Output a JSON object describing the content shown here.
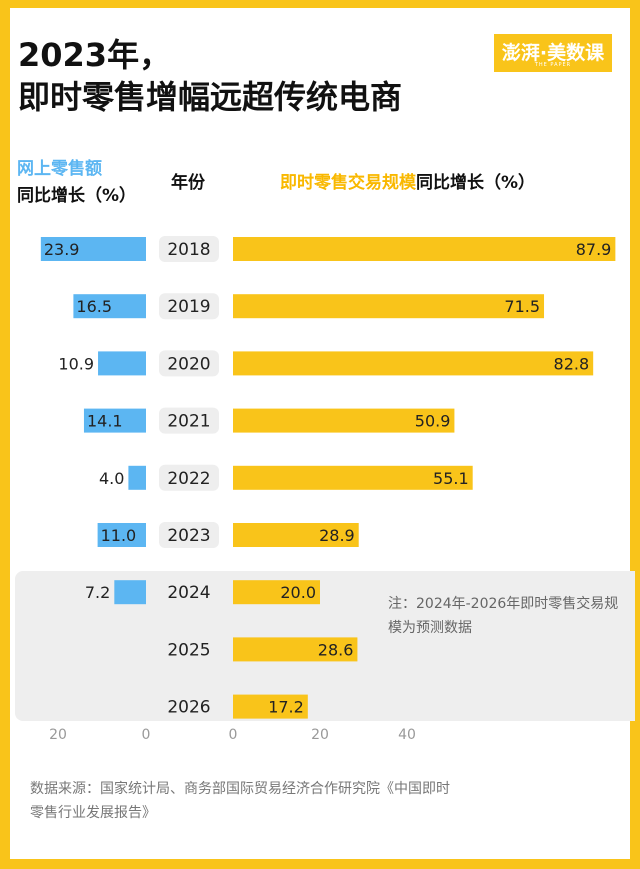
{
  "title_line1": "2023年，",
  "title_line2": "即时零售增幅远超传统电商",
  "logo_text": "澎湃·美数课",
  "logo_subtext": "THE PAPER",
  "header_left_line1": "网上零售额",
  "header_left_line2": "同比增长（%）",
  "header_year": "年份",
  "header_right_part1": "即时零售交易规模",
  "header_right_part2": "同比增长（%）",
  "note": "注：2024年-2026年即时零售交易规模为预测数据",
  "source": "数据来源：国家统计局、商务部国际贸易经济合作研究院《中国即时零售行业发展报告》",
  "colors": {
    "left_bar": "#5cb6f2",
    "right_bar": "#f9c41a",
    "background": "#f9c41a",
    "year_pill": "#eeeeee",
    "forecast_panel": "#eeeeee"
  },
  "chart_data": {
    "type": "bar",
    "categories": [
      "2018",
      "2019",
      "2020",
      "2021",
      "2022",
      "2023",
      "2024",
      "2025",
      "2026"
    ],
    "series": [
      {
        "name": "网上零售额同比增长（%）",
        "values": [
          23.9,
          16.5,
          10.9,
          14.1,
          4.0,
          11.0,
          7.2,
          null,
          null
        ]
      },
      {
        "name": "即时零售交易规模同比增长（%）",
        "values": [
          87.9,
          71.5,
          82.8,
          50.9,
          55.1,
          28.9,
          20.0,
          28.6,
          17.2
        ]
      }
    ],
    "left_axis_ticks": [
      "20",
      "0"
    ],
    "right_axis_ticks": [
      "0",
      "20",
      "40"
    ]
  }
}
